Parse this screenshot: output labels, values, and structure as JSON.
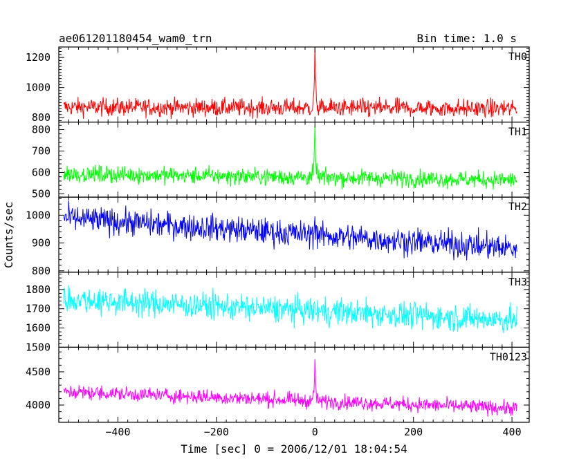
{
  "header": {
    "left_title": "ae061201180454_wam0_trn",
    "right_title": "Bin time: 1.0 s"
  },
  "axes": {
    "xlabel": "Time [sec] 0 = 2006/12/01 18:04:54",
    "ylabel": "Counts/sec"
  },
  "chart_data": {
    "type": "line",
    "x_range": [
      -510,
      410
    ],
    "xlim": [
      -520,
      435
    ],
    "x_ticks": [
      -400,
      -200,
      0,
      200,
      400
    ],
    "x_tick_labels": [
      "−400",
      "−200",
      "0",
      "200",
      "400"
    ],
    "bin_time_s": 1.0,
    "panels": [
      {
        "label": "TH0",
        "color": "#ff0000",
        "ylim": [
          770,
          1270
        ],
        "y_ticks": [
          800,
          1000,
          1200
        ],
        "y_tick_labels": [
          "800",
          "1000",
          "1200"
        ],
        "start_mean": 870,
        "end_mean": 860,
        "noise": 30,
        "peak": 1280
      },
      {
        "label": "TH1",
        "color": "#00ff00",
        "ylim": [
          485,
          835
        ],
        "y_ticks": [
          500,
          600,
          700,
          800
        ],
        "y_tick_labels": [
          "500",
          "600",
          "700",
          "800"
        ],
        "start_mean": 593,
        "end_mean": 565,
        "noise": 20,
        "peak": 845
      },
      {
        "label": "TH2",
        "color": "#0000ff",
        "ylim": [
          795,
          1065
        ],
        "y_ticks": [
          800,
          900,
          1000
        ],
        "y_tick_labels": [
          "800",
          "900",
          "1000"
        ],
        "start_mean": 990,
        "end_mean": 880,
        "noise": 24,
        "peak": 1055
      },
      {
        "label": "TH3",
        "color": "#00ffff",
        "ylim": [
          1500,
          1890
        ],
        "y_ticks": [
          1500,
          1600,
          1700,
          1800
        ],
        "y_tick_labels": [
          "1500",
          "1600",
          "1700",
          "1800"
        ],
        "start_mean": 1750,
        "end_mean": 1640,
        "noise": 35,
        "peak": 0
      },
      {
        "label": "TH0123",
        "color": "#ff00ff",
        "ylim": [
          3740,
          4870
        ],
        "y_ticks": [
          4000,
          4500
        ],
        "y_tick_labels": [
          "4000",
          "4500"
        ],
        "start_mean": 4200,
        "end_mean": 3950,
        "noise": 55,
        "peak": 4900
      }
    ]
  }
}
